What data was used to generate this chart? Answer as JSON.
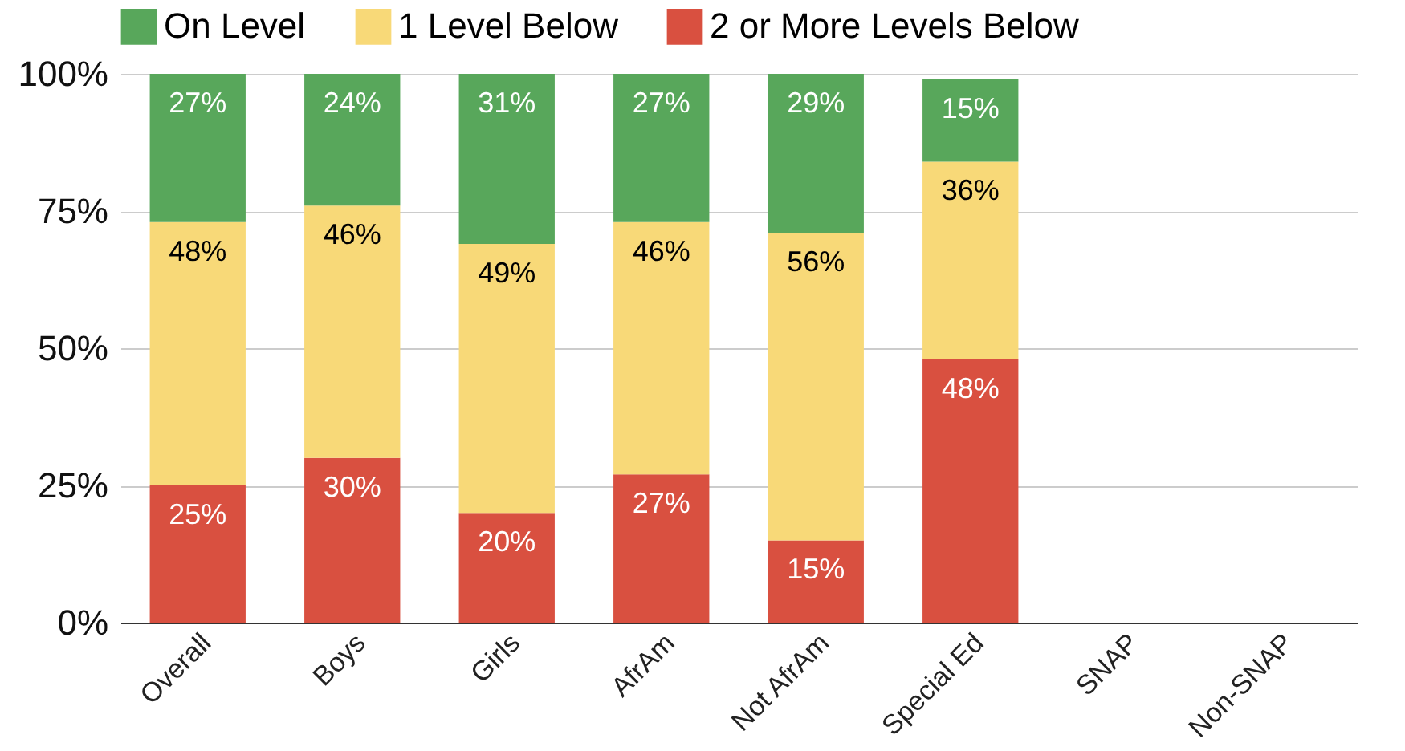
{
  "chart_data": {
    "type": "bar",
    "stacked": true,
    "categories": [
      "Overall",
      "Boys",
      "Girls",
      "AfrAm",
      "Not AfrAm",
      "Special Ed",
      "SNAP",
      "Non-SNAP"
    ],
    "series": [
      {
        "name": "2 or More Levels Below",
        "color": "#d95040",
        "values": [
          25,
          30,
          20,
          27,
          15,
          48,
          null,
          null
        ],
        "value_labels": [
          "25%",
          "30%",
          "20%",
          "27%",
          "15%",
          "48%",
          null,
          null
        ]
      },
      {
        "name": "1 Level Below",
        "color": "#f8d978",
        "values": [
          48,
          46,
          49,
          46,
          56,
          36,
          null,
          null
        ],
        "value_labels": [
          "48%",
          "46%",
          "49%",
          "46%",
          "56%",
          "36%",
          null,
          null
        ]
      },
      {
        "name": "On Level",
        "color": "#58a75b",
        "values": [
          27,
          24,
          31,
          27,
          29,
          15,
          null,
          null
        ],
        "value_labels": [
          "27%",
          "24%",
          "31%",
          "27%",
          "29%",
          "15%",
          null,
          null
        ]
      }
    ],
    "ylim": [
      0,
      100
    ],
    "yticks": [
      {
        "value": 0,
        "label": "0%"
      },
      {
        "value": 25,
        "label": "25%"
      },
      {
        "value": 50,
        "label": "50%"
      },
      {
        "value": 75,
        "label": "75%"
      },
      {
        "value": 100,
        "label": "100%"
      }
    ],
    "grid": "y",
    "legend": "top"
  }
}
